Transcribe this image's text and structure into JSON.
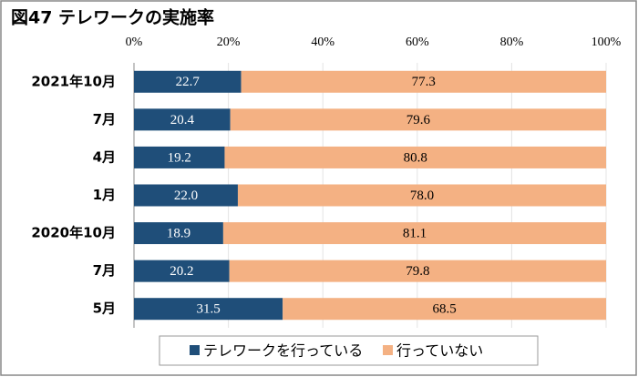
{
  "chart_data": {
    "type": "stacked-bar-horizontal",
    "title": "図47 テレワークの実施率",
    "categories": [
      "2021年10月",
      "7月",
      "4月",
      "1月",
      "2020年10月",
      "7月",
      "5月"
    ],
    "series": [
      {
        "name": "テレワークを行っている",
        "color": "#1f4e79",
        "values": [
          22.7,
          20.4,
          19.2,
          22.0,
          18.9,
          20.2,
          31.5
        ],
        "value_labels": [
          "22.7",
          "20.4",
          "19.2",
          "22.0",
          "18.9",
          "20.2",
          "31.5"
        ]
      },
      {
        "name": "行っていない",
        "color": "#f4b183",
        "values": [
          77.3,
          79.6,
          80.8,
          78.0,
          81.1,
          79.8,
          68.5
        ],
        "value_labels": [
          "77.3",
          "79.6",
          "80.8",
          "78.0",
          "81.1",
          "79.8",
          "68.5"
        ]
      }
    ],
    "xlim": [
      0,
      100
    ],
    "xticks": [
      {
        "value": 0,
        "label": "0%"
      },
      {
        "value": 20,
        "label": "20%"
      },
      {
        "value": 40,
        "label": "40%"
      },
      {
        "value": 60,
        "label": "60%"
      },
      {
        "value": 80,
        "label": "80%"
      },
      {
        "value": 100,
        "label": "100%"
      }
    ],
    "grid": true,
    "legend": "bottom"
  }
}
